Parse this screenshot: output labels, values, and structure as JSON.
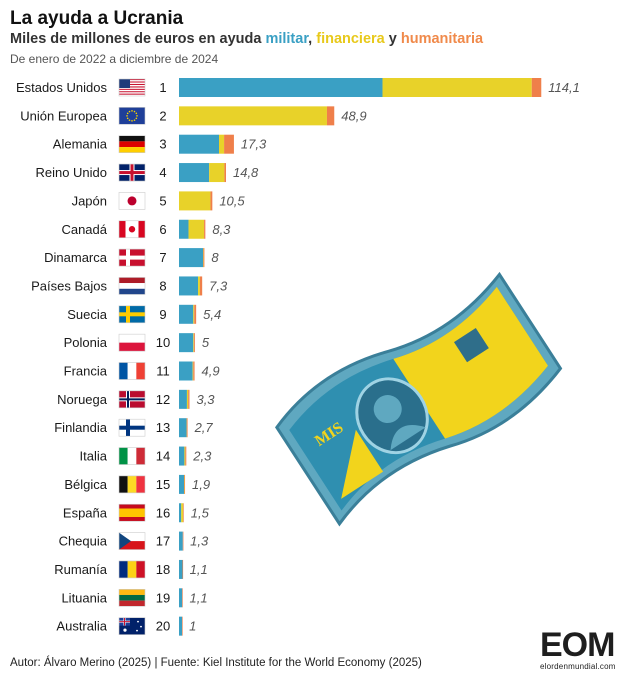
{
  "header": {
    "title": "La ayuda a Ucrania",
    "subtitle_prefix": "Miles de millones de euros en ayuda",
    "subtitle_military": "militar",
    "subtitle_financial": "financiera",
    "subtitle_and": "y",
    "subtitle_humanitarian": "humanitaria",
    "date_range": "De enero de 2022 a diciembre de 2024"
  },
  "footer": {
    "credit": "Autor: Álvaro Merino (2025) | Fuente: Kiel Institute for the World Economy (2025)"
  },
  "logo": {
    "mark": "EOM",
    "url": "elordenmundial.com"
  },
  "colors": {
    "military": "#3aa0c4",
    "financial": "#e8d229",
    "humanitarian": "#ef7f4a"
  },
  "chart_data": {
    "type": "bar",
    "orientation": "horizontal",
    "stacked": true,
    "xlim": [
      0,
      120
    ],
    "categories": [
      "Estados Unidos",
      "Unión Europea",
      "Alemania",
      "Reino Unido",
      "Japón",
      "Canadá",
      "Dinamarca",
      "Países Bajos",
      "Suecia",
      "Polonia",
      "Francia",
      "Noruega",
      "Finlandia",
      "Italia",
      "Bélgica",
      "España",
      "Chequia",
      "Rumanía",
      "Lituania",
      "Australia"
    ],
    "ranks": [
      "1",
      "2",
      "3",
      "4",
      "5",
      "6",
      "7",
      "8",
      "9",
      "10",
      "11",
      "12",
      "13",
      "14",
      "15",
      "16",
      "17",
      "18",
      "19",
      "20"
    ],
    "flags": [
      "us-flag-icon",
      "eu-flag-icon",
      "germany-flag-icon",
      "uk-flag-icon",
      "japan-flag-icon",
      "canada-flag-icon",
      "denmark-flag-icon",
      "netherlands-flag-icon",
      "sweden-flag-icon",
      "poland-flag-icon",
      "france-flag-icon",
      "norway-flag-icon",
      "finland-flag-icon",
      "italy-flag-icon",
      "belgium-flag-icon",
      "spain-flag-icon",
      "czechia-flag-icon",
      "romania-flag-icon",
      "lithuania-flag-icon",
      "australia-flag-icon"
    ],
    "totals": [
      "114,1",
      "48,9",
      "17,3",
      "14,8",
      "10,5",
      "8,3",
      "8",
      "7,3",
      "5,4",
      "5",
      "4,9",
      "3,3",
      "2,7",
      "2,3",
      "1,9",
      "1,5",
      "1,3",
      "1,1",
      "1,1",
      "1"
    ],
    "series": [
      {
        "name": "militar",
        "values": [
          64.1,
          0,
          12.6,
          9.5,
          0,
          3.0,
          7.6,
          6.0,
          4.5,
          4.5,
          4.3,
          2.5,
          2.4,
          1.7,
          1.6,
          0.7,
          1.2,
          1.1,
          1.0,
          0.95
        ]
      },
      {
        "name": "financiera",
        "values": [
          47.0,
          46.6,
          1.6,
          4.8,
          9.9,
          4.9,
          0.1,
          0.6,
          0.3,
          0.2,
          0.2,
          0.4,
          0.05,
          0.3,
          0.1,
          0.6,
          0,
          0,
          0,
          0
        ]
      },
      {
        "name": "humanitaria",
        "values": [
          3.0,
          2.3,
          3.1,
          0.5,
          0.6,
          0.4,
          0.3,
          0.7,
          0.6,
          0.3,
          0.4,
          0.4,
          0.25,
          0.3,
          0.2,
          0.2,
          0.1,
          0.05,
          0.1,
          0.05
        ]
      }
    ]
  }
}
